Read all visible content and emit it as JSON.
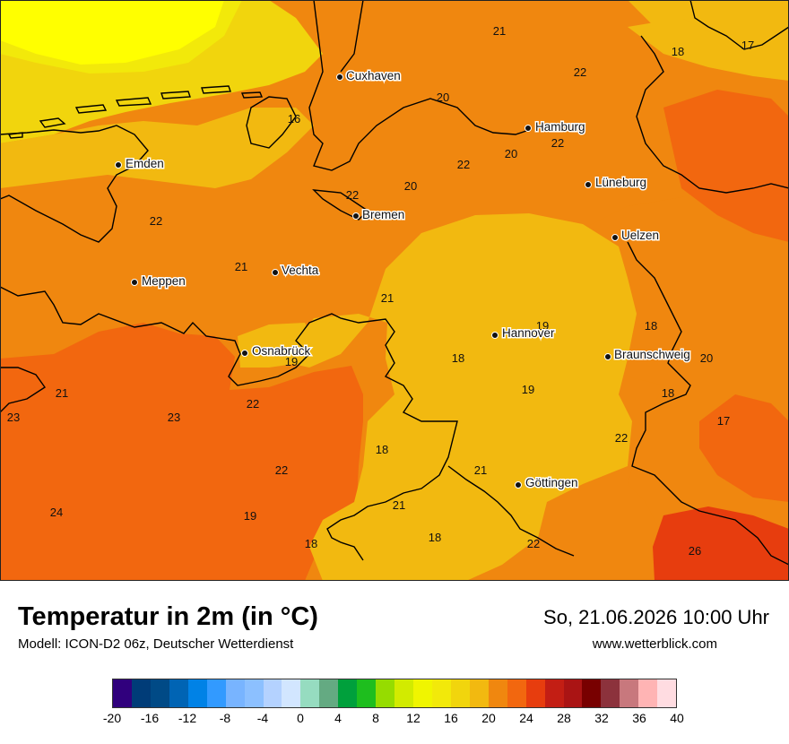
{
  "map": {
    "cities": [
      {
        "name": "Cuxhaven"
      },
      {
        "name": "Hamburg"
      },
      {
        "name": "Emden"
      },
      {
        "name": "Bremen"
      },
      {
        "name": "Lüneburg"
      },
      {
        "name": "Uelzen"
      },
      {
        "name": "Meppen"
      },
      {
        "name": "Vechta"
      },
      {
        "name": "Osnabrück"
      },
      {
        "name": "Hannover"
      },
      {
        "name": "Braunschweig"
      },
      {
        "name": "Göttingen"
      }
    ],
    "temperature_labels": [
      "21",
      "22",
      "18",
      "17",
      "20",
      "16",
      "22",
      "20",
      "22",
      "20",
      "22",
      "22",
      "21",
      "21",
      "19",
      "18",
      "20",
      "19",
      "18",
      "19",
      "18",
      "21",
      "23",
      "23",
      "22",
      "22",
      "17",
      "18",
      "21",
      "22",
      "24",
      "19",
      "21",
      "18",
      "18",
      "22",
      "26"
    ],
    "colors": {
      "coast_yellow": "#ffff00",
      "band_15": "#f2e90a",
      "band_17": "#f1d50d",
      "band_19": "#f2b910",
      "band_21": "#f0870f",
      "band_23": "#f2670f",
      "band_25": "#e73d0e",
      "border": "#000000"
    }
  },
  "footer": {
    "title": "Temperatur in 2m (in °C)",
    "model": "Modell: ICON-D2 06z, Deutscher Wetterdienst",
    "datetime": "So, 21.06.2026 10:00 Uhr",
    "website": "www.wetterblick.com"
  },
  "legend": {
    "colors": [
      "#30007d",
      "#003c78",
      "#004a86",
      "#0064b4",
      "#0082e6",
      "#329aff",
      "#78b4ff",
      "#8cc0ff",
      "#b4d2ff",
      "#d2e6ff",
      "#96dcc0",
      "#64aa82",
      "#00a03c",
      "#1ebe1e",
      "#96dc00",
      "#d2eb00",
      "#f0f500",
      "#f2e90a",
      "#f1d50d",
      "#f2b910",
      "#f0870f",
      "#f2670f",
      "#e73d0e",
      "#c31e14",
      "#aa1414",
      "#780000",
      "#8c323c",
      "#c8787d",
      "#ffb4b4",
      "#ffdce1"
    ],
    "ticks": [
      "-20",
      "-16",
      "-12",
      "-8",
      "-4",
      "0",
      "4",
      "8",
      "12",
      "16",
      "20",
      "24",
      "28",
      "32",
      "36",
      "40"
    ]
  }
}
